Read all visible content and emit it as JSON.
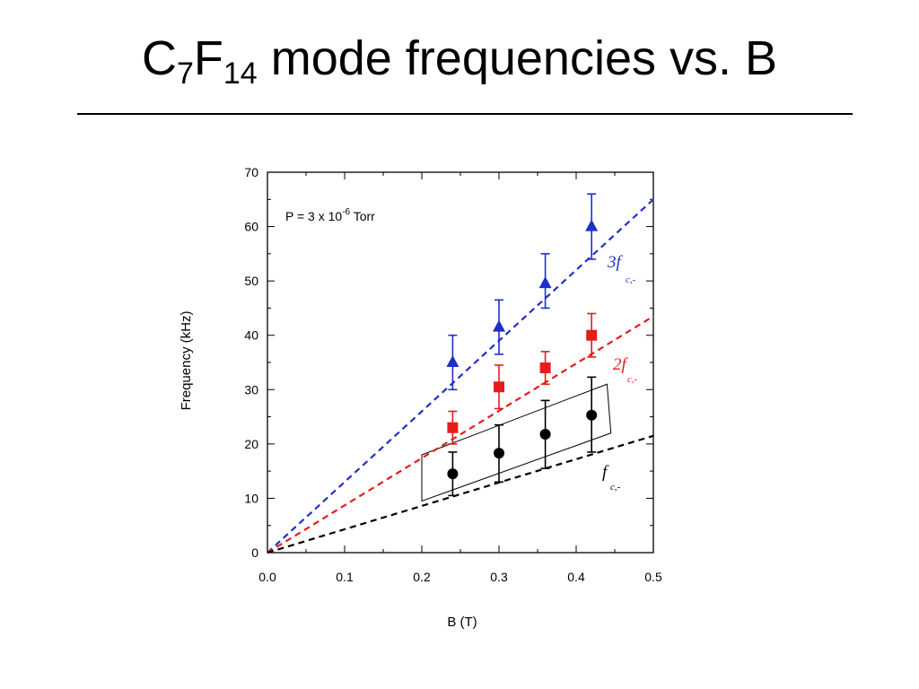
{
  "slide": {
    "title_parts": [
      {
        "text": "C",
        "sub": false
      },
      {
        "text": "7",
        "sub": true
      },
      {
        "text": "F",
        "sub": false
      },
      {
        "text": "14",
        "sub": true
      },
      {
        "text": " mode frequencies vs. B",
        "sub": false
      }
    ]
  },
  "chart_data": {
    "type": "scatter",
    "title": "",
    "xlabel": "B (T)",
    "ylabel": "Frequency (kHz)",
    "xlim": [
      0.0,
      0.5
    ],
    "ylim": [
      0,
      70
    ],
    "x_ticks": [
      "0.0",
      "0.1",
      "0.2",
      "0.3",
      "0.4",
      "0.5"
    ],
    "y_ticks": [
      "0",
      "10",
      "20",
      "30",
      "40",
      "50",
      "60",
      "70"
    ],
    "grid": false,
    "annotation": {
      "text": "P = 3 x 10",
      "superscript": "-6",
      "suffix": " Torr"
    },
    "series": [
      {
        "color": "#1f2fc8",
        "marker": "triangle",
        "fit_label_main": "3f",
        "fit_label_sub": "c,-",
        "points": [
          {
            "x": 0.24,
            "y": 35,
            "err_low": 30,
            "err_high": 40
          },
          {
            "x": 0.3,
            "y": 41.5,
            "err_low": 36.5,
            "err_high": 46.5
          },
          {
            "x": 0.36,
            "y": 49.5,
            "err_low": 45,
            "err_high": 55
          },
          {
            "x": 0.42,
            "y": 60,
            "err_low": 54,
            "err_high": 66
          }
        ],
        "fit": {
          "x0": 0,
          "y0": 0,
          "x1": 0.5,
          "y1": 65
        }
      },
      {
        "color": "#e51c1c",
        "marker": "square",
        "fit_label_main": "2f",
        "fit_label_sub": "c,-",
        "points": [
          {
            "x": 0.24,
            "y": 23,
            "err_low": 20,
            "err_high": 26
          },
          {
            "x": 0.3,
            "y": 30.5,
            "err_low": 26.5,
            "err_high": 34.5
          },
          {
            "x": 0.36,
            "y": 34,
            "err_low": 31,
            "err_high": 37
          },
          {
            "x": 0.42,
            "y": 40,
            "err_low": 36,
            "err_high": 44
          }
        ],
        "fit": {
          "x0": 0,
          "y0": 0,
          "x1": 0.5,
          "y1": 43.5
        }
      },
      {
        "color": "#000000",
        "marker": "circle",
        "fit_label_main": "f",
        "fit_label_sub": "c,-",
        "points": [
          {
            "x": 0.24,
            "y": 14.5,
            "err_low": 10.5,
            "err_high": 18.5
          },
          {
            "x": 0.3,
            "y": 18.3,
            "err_low": 13,
            "err_high": 23.5
          },
          {
            "x": 0.36,
            "y": 21.8,
            "err_low": 15.5,
            "err_high": 28
          },
          {
            "x": 0.42,
            "y": 25.3,
            "err_low": 18.5,
            "err_high": 32.3
          }
        ],
        "fit": {
          "x0": 0,
          "y0": 0,
          "x1": 0.5,
          "y1": 21.5
        }
      }
    ],
    "highlight_box": {
      "corners": [
        [
          0.2,
          9.5
        ],
        [
          0.2,
          18
        ],
        [
          0.44,
          31
        ],
        [
          0.445,
          22
        ]
      ]
    }
  }
}
